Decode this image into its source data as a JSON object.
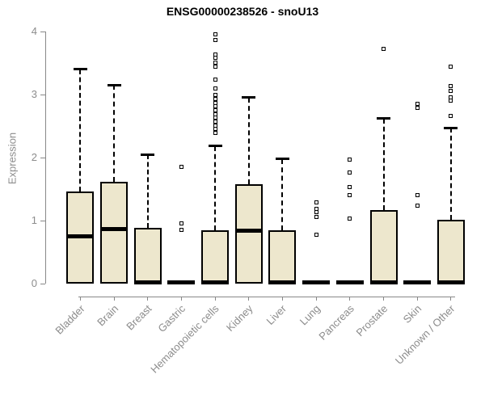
{
  "chart_data": {
    "type": "boxplot",
    "title": "ENSG00000238526 - snoU13",
    "ylabel": "Expression",
    "xlabel": "",
    "ylim": [
      0,
      4
    ],
    "yticks": [
      0,
      1,
      2,
      3,
      4
    ],
    "grid": false,
    "legend": false,
    "categories": [
      "Bladder",
      "Brain",
      "Breast",
      "Gastric",
      "Hematopoietic cells",
      "Kidney",
      "Liver",
      "Lung",
      "Pancreas",
      "Prostate",
      "Skin",
      "Unknown / Other"
    ],
    "series": [
      {
        "name": "Bladder",
        "q1": 0,
        "median": 0.75,
        "q3": 1.46,
        "whisker_low": 0,
        "whisker_high": 3.4,
        "flat": false,
        "outliers": []
      },
      {
        "name": "Brain",
        "q1": 0,
        "median": 0.87,
        "q3": 1.62,
        "whisker_low": 0,
        "whisker_high": 3.15,
        "flat": false,
        "outliers": []
      },
      {
        "name": "Breast",
        "q1": 0,
        "median": 0.02,
        "q3": 0.88,
        "whisker_low": 0,
        "whisker_high": 2.05,
        "flat": false,
        "outliers": []
      },
      {
        "name": "Gastric",
        "q1": 0,
        "median": 0.02,
        "q3": 0,
        "whisker_low": null,
        "whisker_high": null,
        "flat": true,
        "outliers": [
          1.85,
          0.95,
          0.85
        ]
      },
      {
        "name": "Hematopoietic cells",
        "q1": 0,
        "median": 0.02,
        "q3": 0.85,
        "whisker_low": 0,
        "whisker_high": 2.18,
        "flat": false,
        "outliers": [
          3.95,
          3.86,
          3.64,
          3.58,
          3.51,
          3.44,
          3.24,
          3.1,
          2.99,
          2.93,
          2.87,
          2.81,
          2.75,
          2.69,
          2.63,
          2.57,
          2.51,
          2.45,
          2.39
        ]
      },
      {
        "name": "Kidney",
        "q1": 0,
        "median": 0.84,
        "q3": 1.58,
        "whisker_low": 0,
        "whisker_high": 2.95,
        "flat": false,
        "outliers": []
      },
      {
        "name": "Liver",
        "q1": 0,
        "median": 0.02,
        "q3": 0.84,
        "whisker_low": 0,
        "whisker_high": 1.98,
        "flat": false,
        "outliers": []
      },
      {
        "name": "Lung",
        "q1": 0,
        "median": 0.02,
        "q3": 0,
        "whisker_low": null,
        "whisker_high": null,
        "flat": true,
        "outliers": [
          1.29,
          1.19,
          1.13,
          1.06,
          0.78
        ]
      },
      {
        "name": "Pancreas",
        "q1": 0,
        "median": 0.02,
        "q3": 0,
        "whisker_low": null,
        "whisker_high": null,
        "flat": true,
        "outliers": [
          1.97,
          1.76,
          1.53,
          1.41,
          1.03
        ]
      },
      {
        "name": "Prostate",
        "q1": 0,
        "median": 0.02,
        "q3": 1.17,
        "whisker_low": 0,
        "whisker_high": 2.62,
        "flat": false,
        "outliers": [
          3.72
        ]
      },
      {
        "name": "Skin",
        "q1": 0,
        "median": 0.02,
        "q3": 0,
        "whisker_low": null,
        "whisker_high": null,
        "flat": true,
        "outliers": [
          2.85,
          2.79,
          1.4,
          1.24
        ]
      },
      {
        "name": "Unknown / Other",
        "q1": 0,
        "median": 0.02,
        "q3": 1.01,
        "whisker_low": 0,
        "whisker_high": 2.47,
        "flat": false,
        "outliers": [
          3.44,
          3.13,
          3.06,
          2.95,
          2.9,
          2.66
        ]
      }
    ]
  },
  "colors": {
    "box_fill": "#EDE7CD",
    "box_border": "#000000",
    "median": "#000000",
    "whisker": "#000000",
    "axis": "#888888",
    "tick_label": "#8C8C8C",
    "title": "#000000",
    "background": "#FFFFFF"
  }
}
